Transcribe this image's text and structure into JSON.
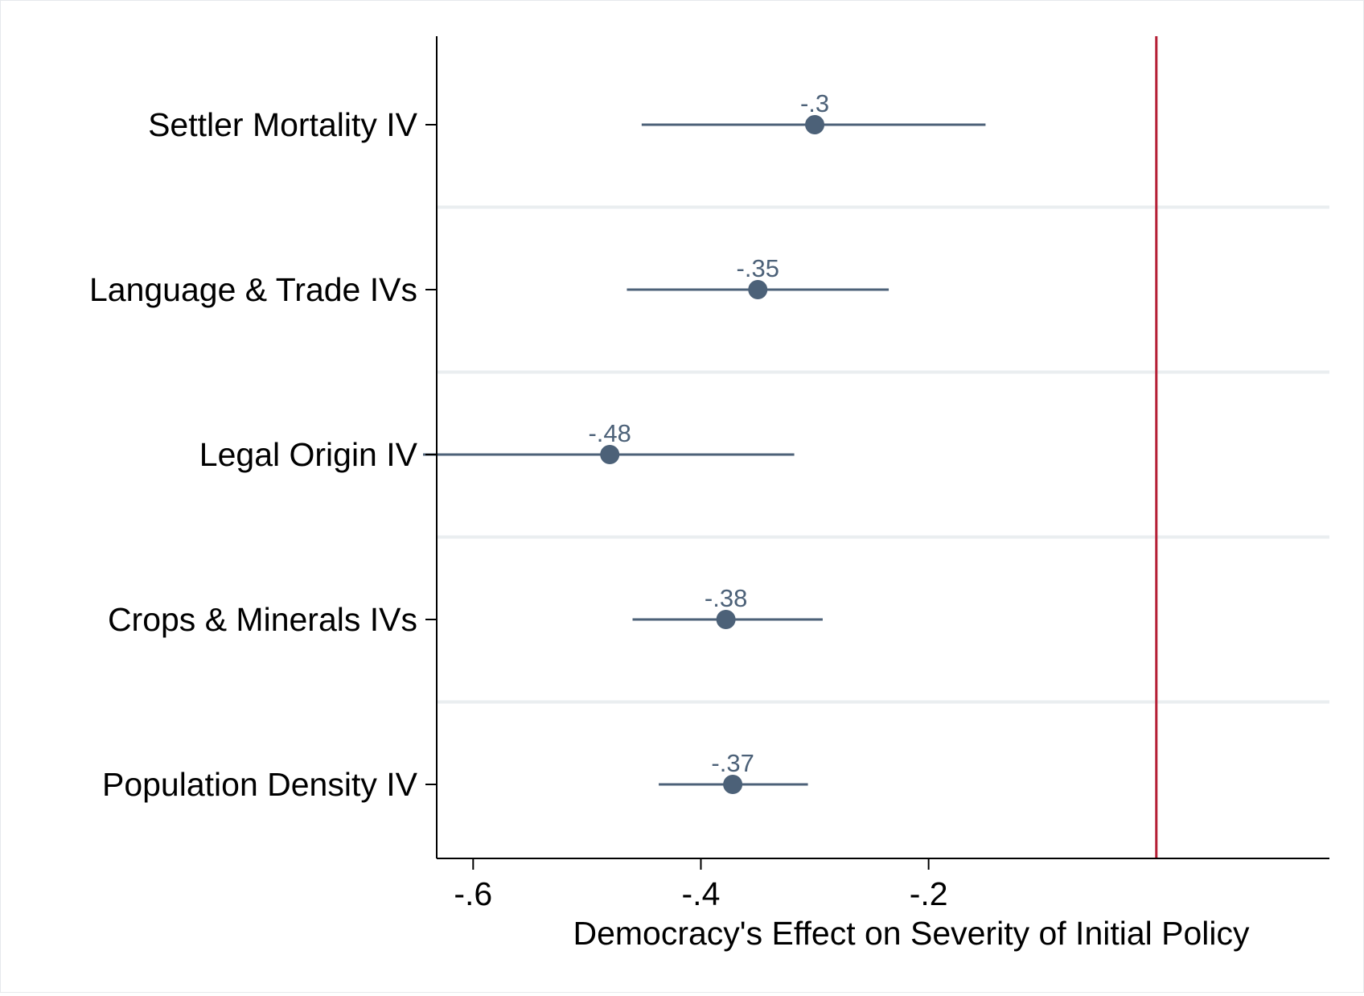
{
  "chart_data": {
    "type": "coefficient-plot",
    "title": "",
    "xlabel": "Democracy's Effect on Severity of Initial Policy",
    "ylabel": "",
    "xlim": [
      -0.632,
      0.152
    ],
    "xticks": [
      -0.6,
      -0.4,
      -0.2
    ],
    "xtick_labels": [
      "-.6",
      "-.4",
      "-.2"
    ],
    "reference_line": 0,
    "grid": "horizontal separators between rows",
    "legend": "none",
    "rows": [
      {
        "label": "Settler Mortality IV",
        "estimate": -0.3,
        "ci_low": -0.452,
        "ci_high": -0.15,
        "value_label": "-.3"
      },
      {
        "label": "Language & Trade IVs",
        "estimate": -0.35,
        "ci_low": -0.465,
        "ci_high": -0.235,
        "value_label": "-.35"
      },
      {
        "label": "Legal Origin IV",
        "estimate": -0.48,
        "ci_low": -0.644,
        "ci_high": -0.318,
        "value_label": "-.48"
      },
      {
        "label": "Crops & Minerals IVs",
        "estimate": -0.378,
        "ci_low": -0.46,
        "ci_high": -0.293,
        "value_label": "-.38"
      },
      {
        "label": "Population Density IV",
        "estimate": -0.372,
        "ci_low": -0.437,
        "ci_high": -0.306,
        "value_label": "-.37"
      }
    ],
    "colors": {
      "marker": "#4c6178",
      "ci_line": "#4c6178",
      "value_label": "#4c6178",
      "reference_line": "#b51f35",
      "separator": "#eaeef0",
      "axis": "#000000"
    }
  }
}
